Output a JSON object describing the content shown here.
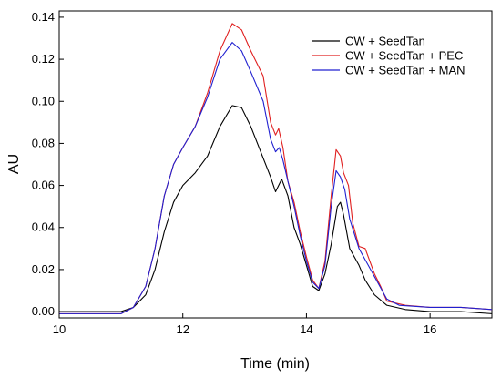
{
  "chart_data": {
    "type": "line",
    "title": "",
    "xlabel": "Time (min)",
    "ylabel": "AU",
    "xlim": [
      10,
      17
    ],
    "ylim": [
      -0.003,
      0.143
    ],
    "x_ticks": [
      10,
      12,
      14,
      16
    ],
    "y_ticks": [
      0.0,
      0.02,
      0.04,
      0.06,
      0.08,
      0.1,
      0.12,
      0.14
    ],
    "y_tick_labels": [
      "0.00",
      "0.02",
      "0.04",
      "0.06",
      "0.08",
      "0.10",
      "0.12",
      "0.14"
    ],
    "grid": false,
    "legend_position": "top-right",
    "series": [
      {
        "name": "CW + SeedTan",
        "color": "#000000",
        "points": [
          [
            10.0,
            0.0
          ],
          [
            11.0,
            0.0
          ],
          [
            11.2,
            0.002
          ],
          [
            11.4,
            0.008
          ],
          [
            11.55,
            0.02
          ],
          [
            11.7,
            0.038
          ],
          [
            11.85,
            0.052
          ],
          [
            12.0,
            0.06
          ],
          [
            12.2,
            0.066
          ],
          [
            12.4,
            0.074
          ],
          [
            12.6,
            0.088
          ],
          [
            12.8,
            0.098
          ],
          [
            12.95,
            0.097
          ],
          [
            13.1,
            0.088
          ],
          [
            13.3,
            0.073
          ],
          [
            13.42,
            0.064
          ],
          [
            13.5,
            0.057
          ],
          [
            13.6,
            0.063
          ],
          [
            13.7,
            0.055
          ],
          [
            13.8,
            0.04
          ],
          [
            13.9,
            0.032
          ],
          [
            14.0,
            0.022
          ],
          [
            14.1,
            0.012
          ],
          [
            14.2,
            0.01
          ],
          [
            14.3,
            0.018
          ],
          [
            14.4,
            0.032
          ],
          [
            14.5,
            0.05
          ],
          [
            14.55,
            0.052
          ],
          [
            14.6,
            0.046
          ],
          [
            14.7,
            0.03
          ],
          [
            14.85,
            0.022
          ],
          [
            14.95,
            0.015
          ],
          [
            15.1,
            0.008
          ],
          [
            15.3,
            0.003
          ],
          [
            15.6,
            0.001
          ],
          [
            16.0,
            0.0
          ],
          [
            16.5,
            0.0
          ],
          [
            17.0,
            -0.001
          ]
        ]
      },
      {
        "name": "CW + SeedTan + PEC",
        "color": "#e02020",
        "points": [
          [
            10.0,
            -0.001
          ],
          [
            11.0,
            -0.001
          ],
          [
            11.2,
            0.002
          ],
          [
            11.4,
            0.012
          ],
          [
            11.55,
            0.03
          ],
          [
            11.7,
            0.055
          ],
          [
            11.85,
            0.07
          ],
          [
            12.0,
            0.078
          ],
          [
            12.2,
            0.088
          ],
          [
            12.4,
            0.104
          ],
          [
            12.6,
            0.124
          ],
          [
            12.8,
            0.137
          ],
          [
            12.95,
            0.134
          ],
          [
            13.1,
            0.124
          ],
          [
            13.3,
            0.112
          ],
          [
            13.42,
            0.09
          ],
          [
            13.5,
            0.084
          ],
          [
            13.55,
            0.087
          ],
          [
            13.62,
            0.078
          ],
          [
            13.7,
            0.062
          ],
          [
            13.8,
            0.052
          ],
          [
            13.9,
            0.038
          ],
          [
            14.0,
            0.026
          ],
          [
            14.1,
            0.015
          ],
          [
            14.2,
            0.011
          ],
          [
            14.3,
            0.024
          ],
          [
            14.4,
            0.055
          ],
          [
            14.48,
            0.077
          ],
          [
            14.55,
            0.074
          ],
          [
            14.6,
            0.066
          ],
          [
            14.68,
            0.06
          ],
          [
            14.75,
            0.042
          ],
          [
            14.85,
            0.031
          ],
          [
            14.95,
            0.03
          ],
          [
            15.1,
            0.018
          ],
          [
            15.2,
            0.012
          ],
          [
            15.3,
            0.005
          ],
          [
            15.6,
            0.003
          ],
          [
            16.0,
            0.002
          ],
          [
            16.5,
            0.002
          ],
          [
            17.0,
            0.001
          ]
        ]
      },
      {
        "name": "CW + SeedTan + MAN",
        "color": "#2020d0",
        "points": [
          [
            10.0,
            -0.001
          ],
          [
            11.0,
            -0.001
          ],
          [
            11.2,
            0.002
          ],
          [
            11.4,
            0.012
          ],
          [
            11.55,
            0.03
          ],
          [
            11.7,
            0.055
          ],
          [
            11.85,
            0.07
          ],
          [
            12.0,
            0.078
          ],
          [
            12.2,
            0.088
          ],
          [
            12.4,
            0.102
          ],
          [
            12.6,
            0.12
          ],
          [
            12.8,
            0.128
          ],
          [
            12.95,
            0.124
          ],
          [
            13.1,
            0.114
          ],
          [
            13.3,
            0.1
          ],
          [
            13.42,
            0.082
          ],
          [
            13.5,
            0.076
          ],
          [
            13.56,
            0.078
          ],
          [
            13.62,
            0.072
          ],
          [
            13.7,
            0.062
          ],
          [
            13.8,
            0.05
          ],
          [
            13.9,
            0.036
          ],
          [
            14.0,
            0.024
          ],
          [
            14.1,
            0.014
          ],
          [
            14.2,
            0.011
          ],
          [
            14.3,
            0.022
          ],
          [
            14.4,
            0.05
          ],
          [
            14.48,
            0.067
          ],
          [
            14.55,
            0.064
          ],
          [
            14.62,
            0.058
          ],
          [
            14.7,
            0.044
          ],
          [
            14.85,
            0.03
          ],
          [
            15.0,
            0.022
          ],
          [
            15.15,
            0.014
          ],
          [
            15.3,
            0.006
          ],
          [
            15.5,
            0.003
          ],
          [
            16.0,
            0.002
          ],
          [
            16.5,
            0.002
          ],
          [
            17.0,
            0.001
          ]
        ]
      }
    ]
  }
}
